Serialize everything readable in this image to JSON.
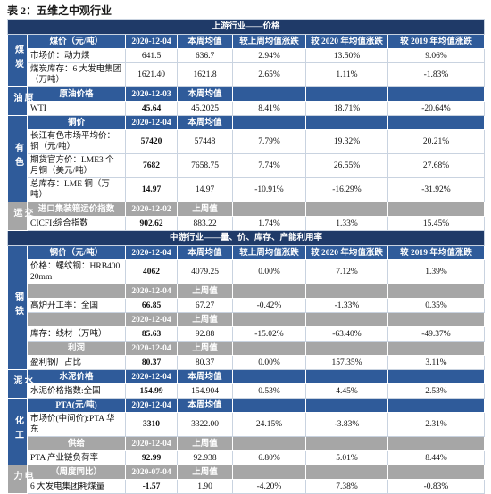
{
  "title": "表 2：五维之中观行业",
  "blocks": [
    {
      "header": "上游行业——价格",
      "columns": [
        "较上周均值涨跌",
        "较 2020 年均值涨跌",
        "较 2019 年均值涨跌"
      ],
      "sections": [
        {
          "name": "煤炭",
          "bold": false,
          "rows": [
            {
              "style": "blue",
              "label": "煤价（元/吨）",
              "date": "2020-12-04",
              "col": "本周均值",
              "columns": true
            },
            {
              "name": "市场价：动力煤",
              "values": [
                "641.5",
                "636.7"
              ],
              "changes": [
                "2.94%",
                "13.50%",
                "9.06%"
              ]
            },
            {
              "name": "煤炭库存：6 大发电集团（万吨）",
              "values": [
                "1621.40",
                "1621.8"
              ],
              "changes": [
                "2.65%",
                "1.11%",
                "-1.83%"
              ]
            }
          ]
        },
        {
          "name": "原油",
          "bold": true,
          "rows": [
            {
              "style": "blue",
              "label": "原油价格",
              "date": "2020-12-03",
              "col": "本周均值"
            },
            {
              "name": "WTI",
              "values": [
                "45.64",
                "45.2025"
              ],
              "changes": [
                "8.41%",
                "18.71%",
                "-20.64%"
              ]
            }
          ]
        },
        {
          "name": "有色",
          "bold": true,
          "rows": [
            {
              "style": "blue",
              "label": "铜价",
              "date": "2020-12-04",
              "col": "本周均值"
            },
            {
              "name": "长江有色市场平均价：铜（元/吨）",
              "values": [
                "57420",
                "57448"
              ],
              "changes": [
                "7.79%",
                "19.32%",
                "20.21%"
              ]
            },
            {
              "name": "期货官方价：LME3 个月铜（美元/吨）",
              "values": [
                "7682",
                "7658.75"
              ],
              "changes": [
                "7.74%",
                "26.55%",
                "27.68%"
              ]
            },
            {
              "name": "总库存：LME 铜（万吨）",
              "values": [
                "14.97",
                "14.97"
              ],
              "changes": [
                "-10.91%",
                "-16.29%",
                "-31.92%"
              ]
            }
          ]
        },
        {
          "name": "交运",
          "bold": true,
          "rows": [
            {
              "style": "grey",
              "label": "进口集装箱运价指数",
              "date": "2020-12-02",
              "col": "上周值"
            },
            {
              "name": "CICFI:综合指数",
              "values": [
                "902.62",
                "883.22"
              ],
              "changes": [
                "1.74%",
                "1.33%",
                "15.45%"
              ]
            }
          ]
        }
      ]
    },
    {
      "header": "中游行业——量、价、库存、产能利用率",
      "columns": [
        "较上周均值涨跌",
        "较 2020 年均值涨跌",
        "较 2019 年均值涨跌"
      ],
      "sections": [
        {
          "name": "钢铁",
          "bold": true,
          "rows": [
            {
              "style": "blue",
              "label": "钢价（元/吨）",
              "date": "2020-12-04",
              "col": "本周均值",
              "columns": true
            },
            {
              "name": "价格：螺纹钢：HRB400 20mm",
              "values": [
                "4062",
                "4079.25"
              ],
              "changes": [
                "0.00%",
                "7.12%",
                "1.39%"
              ]
            },
            {
              "style": "grey",
              "date": "2020-12-04",
              "col": "上周值"
            },
            {
              "name": "高炉开工率：全国",
              "values": [
                "66.85",
                "67.27"
              ],
              "changes": [
                "-0.42%",
                "-1.33%",
                "0.35%"
              ]
            },
            {
              "style": "grey",
              "date": "2020-12-04",
              "col": "上周值"
            },
            {
              "name": "库存：线材（万吨）",
              "values": [
                "85.63",
                "92.88"
              ],
              "changes": [
                "-15.02%",
                "-63.40%",
                "-49.37%"
              ]
            },
            {
              "style": "grey",
              "label": "利润",
              "date": "2020-12-04",
              "col": "上周值"
            },
            {
              "name": "盈利钢厂占比",
              "values": [
                "80.37",
                "80.37"
              ],
              "changes": [
                "0.00%",
                "157.35%",
                "3.11%"
              ]
            }
          ]
        },
        {
          "name": "水泥",
          "bold": true,
          "rows": [
            {
              "style": "blue",
              "label": "水泥价格",
              "date": "2020-12-04",
              "col": "本周均值"
            },
            {
              "name": "水泥价格指数:全国",
              "values": [
                "154.99",
                "154.904"
              ],
              "changes": [
                "0.53%",
                "4.45%",
                "2.53%"
              ]
            }
          ]
        },
        {
          "name": "化工",
          "bold": true,
          "rows": [
            {
              "style": "blue",
              "label": "PTA(元/吨)",
              "date": "2020-12-04",
              "col": "本周均值"
            },
            {
              "name": "市场价(中间价):PTA 华东",
              "values": [
                "3310",
                "3322.00"
              ],
              "changes": [
                "24.15%",
                "-3.83%",
                "2.31%"
              ]
            },
            {
              "style": "grey",
              "label": "供给",
              "date": "2020-12-04",
              "col": "上周值"
            },
            {
              "name": "PTA 产业链负荷率",
              "values": [
                "92.99",
                "92.938"
              ],
              "changes": [
                "6.80%",
                "5.01%",
                "8.44%"
              ]
            }
          ]
        },
        {
          "name": "电力",
          "bold": true,
          "rows": [
            {
              "style": "grey",
              "label": "（周度同比）",
              "date": "2020-07-04",
              "col": "上周值"
            },
            {
              "name": "6 大发电集团耗煤量",
              "values": [
                "-1.57",
                "1.90"
              ],
              "changes": [
                "-4.20%",
                "7.38%",
                "-0.83%"
              ]
            }
          ]
        }
      ]
    }
  ]
}
